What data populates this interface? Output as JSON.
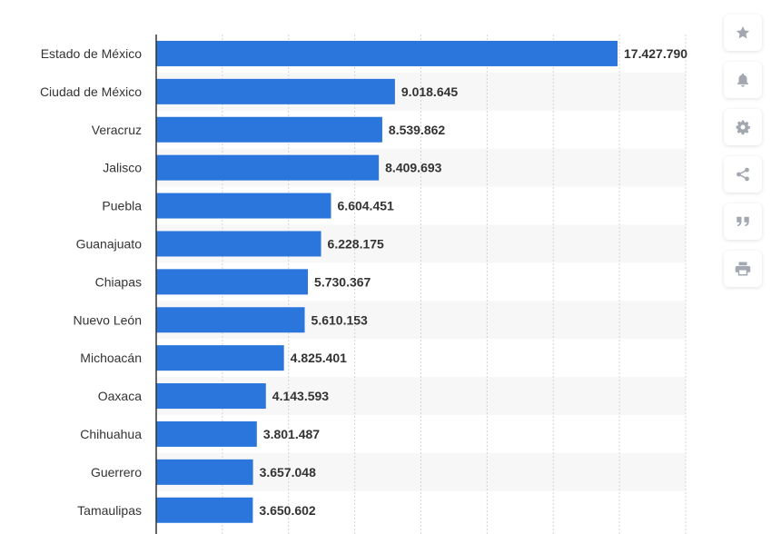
{
  "chart_data": {
    "type": "bar",
    "orientation": "horizontal",
    "categories": [
      "Estado de México",
      "Ciudad de México",
      "Veracruz",
      "Jalisco",
      "Puebla",
      "Guanajuato",
      "Chiapas",
      "Nuevo León",
      "Michoacán",
      "Oaxaca",
      "Chihuahua",
      "Guerrero",
      "Tamaulipas"
    ],
    "values": [
      17427790,
      9018645,
      8539862,
      8409693,
      6604451,
      6228175,
      5730367,
      5610153,
      4825401,
      4143593,
      3801487,
      3657048,
      3650602
    ],
    "value_labels": [
      "17.427.790",
      "9.018.645",
      "8.539.862",
      "8.409.693",
      "6.604.451",
      "6.228.175",
      "5.730.367",
      "5.610.153",
      "4.825.401",
      "4.143.593",
      "3.801.487",
      "3.657.048",
      "3.650.602"
    ],
    "title": "",
    "xlabel": "",
    "ylabel": "",
    "xlim": [
      0,
      20000000
    ],
    "grid": true,
    "legend": "none",
    "bar_color": "#2a76dd",
    "alt_row_color": "#f7f7f7",
    "grid_color": "#d4d4d4",
    "label_color": "#333333",
    "value_label_color": "#333333"
  },
  "sidebar": {
    "icon_color": "#a3a8b0",
    "buttons": [
      {
        "name": "favorite-button",
        "icon": "star-icon"
      },
      {
        "name": "notification-button",
        "icon": "bell-icon"
      },
      {
        "name": "settings-button",
        "icon": "gear-icon"
      },
      {
        "name": "share-button",
        "icon": "share-icon"
      },
      {
        "name": "cite-button",
        "icon": "quote-icon"
      },
      {
        "name": "print-button",
        "icon": "printer-icon"
      }
    ]
  }
}
